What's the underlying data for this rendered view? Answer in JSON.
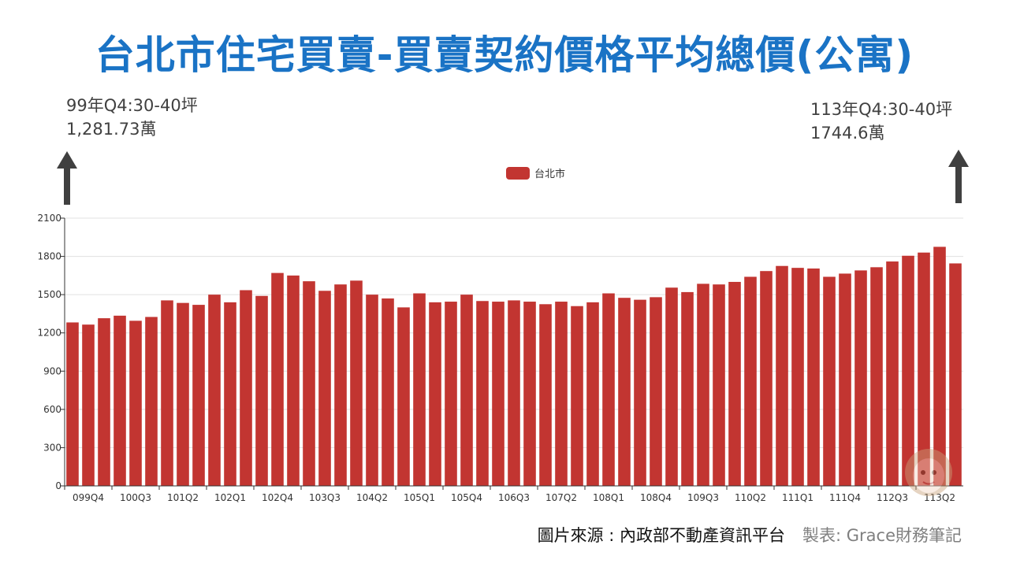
{
  "title": "台北市住宅買賣-買賣契約價格平均總價(公寓)",
  "annotations": {
    "left": {
      "line1": "99年Q4:30-40坪",
      "line2": "1,281.73萬"
    },
    "right": {
      "line1": "113年Q4:30-40坪",
      "line2": "1744.6萬"
    }
  },
  "footer": {
    "source": "圖片來源 : 內政部不動產資訊平台",
    "credit": "製表: Grace財務筆記"
  },
  "colors": {
    "bar": "#c23531",
    "title": "#1a73c5",
    "arrow": "#404040"
  },
  "icons": {
    "left_arrow": "up-arrow-icon",
    "right_arrow": "up-arrow-icon",
    "avatar": "avatar-icon"
  },
  "chart_data": {
    "type": "bar",
    "legend": "top-center",
    "grid": true,
    "ylim": [
      0,
      2100
    ],
    "yticks": [
      0,
      300,
      600,
      900,
      1200,
      1500,
      1800,
      2100
    ],
    "xtick_labels": [
      "099Q4",
      "100Q3",
      "101Q2",
      "102Q1",
      "102Q4",
      "103Q3",
      "104Q2",
      "105Q1",
      "105Q4",
      "106Q3",
      "107Q2",
      "108Q1",
      "108Q4",
      "109Q3",
      "110Q2",
      "111Q1",
      "111Q4",
      "112Q3",
      "113Q2"
    ],
    "categories": [
      "099Q4",
      "100Q1",
      "100Q2",
      "100Q3",
      "100Q4",
      "101Q1",
      "101Q2",
      "101Q3",
      "101Q4",
      "102Q1",
      "102Q2",
      "102Q3",
      "102Q4",
      "103Q1",
      "103Q2",
      "103Q3",
      "103Q4",
      "104Q1",
      "104Q2",
      "104Q3",
      "104Q4",
      "105Q1",
      "105Q2",
      "105Q3",
      "105Q4",
      "106Q1",
      "106Q2",
      "106Q3",
      "106Q4",
      "107Q1",
      "107Q2",
      "107Q3",
      "107Q4",
      "108Q1",
      "108Q2",
      "108Q3",
      "108Q4",
      "109Q1",
      "109Q2",
      "109Q3",
      "109Q4",
      "110Q1",
      "110Q2",
      "110Q3",
      "110Q4",
      "111Q1",
      "111Q2",
      "111Q3",
      "111Q4",
      "112Q1",
      "112Q2",
      "112Q3",
      "112Q4",
      "113Q1",
      "113Q2",
      "113Q3",
      "113Q4"
    ],
    "series": [
      {
        "name": "台北市",
        "values": [
          1282,
          1265,
          1315,
          1335,
          1295,
          1325,
          1455,
          1435,
          1420,
          1500,
          1440,
          1535,
          1490,
          1670,
          1650,
          1605,
          1530,
          1580,
          1610,
          1500,
          1470,
          1400,
          1510,
          1440,
          1445,
          1500,
          1450,
          1445,
          1455,
          1445,
          1425,
          1445,
          1410,
          1440,
          1510,
          1475,
          1460,
          1480,
          1555,
          1520,
          1585,
          1580,
          1600,
          1640,
          1685,
          1725,
          1710,
          1705,
          1640,
          1665,
          1690,
          1715,
          1760,
          1805,
          1830,
          1875,
          1745
        ]
      }
    ]
  }
}
